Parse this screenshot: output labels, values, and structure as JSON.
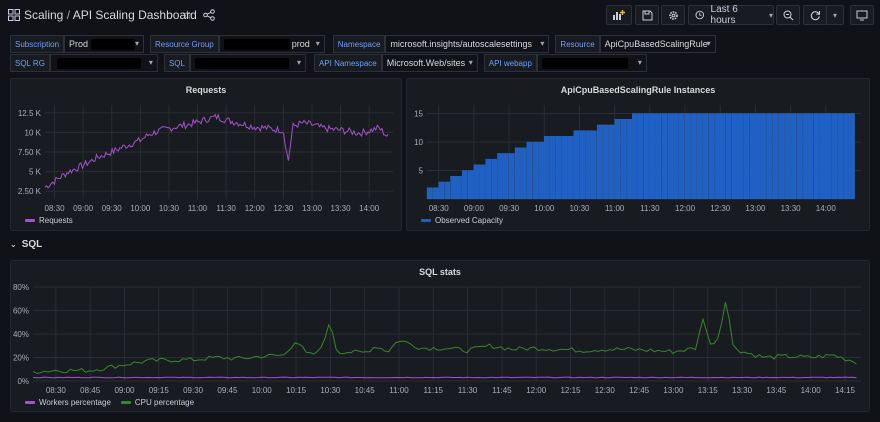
{
  "header": {
    "folder": "Scaling",
    "separator": "/",
    "title": "API Scaling Dashboard",
    "time_range": "Last 6 hours"
  },
  "variables": {
    "row1": [
      {
        "label": "Subscription",
        "value": "Prod"
      },
      {
        "label": "Resource Group",
        "value": "prod"
      },
      {
        "label": "Namespace",
        "value": "microsoft.insights/autoscalesettings"
      },
      {
        "label": "Resource",
        "value": "ApiCpuBasedScalingRule"
      }
    ],
    "row2": [
      {
        "label": "SQL RG",
        "value": ""
      },
      {
        "label": "SQL",
        "value": ""
      },
      {
        "label": "API Namespace",
        "value": "Microsoft.Web/sites"
      },
      {
        "label": "API webapp",
        "value": ""
      }
    ]
  },
  "panels": {
    "requests": {
      "title": "Requests",
      "legend": [
        {
          "name": "Requests",
          "color": "#a352cc"
        }
      ]
    },
    "instances": {
      "title": "ApiCpuBasedScalingRule Instances",
      "legend": [
        {
          "name": "Observed Capacity",
          "color": "#1f60c4"
        }
      ]
    },
    "sql_row": {
      "title": "SQL"
    },
    "sql_stats": {
      "title": "SQL stats",
      "legend": [
        {
          "name": "Workers percentage",
          "color": "#a352cc"
        },
        {
          "name": "CPU percentage",
          "color": "#37872d"
        }
      ]
    }
  },
  "chart_data": [
    {
      "type": "line",
      "title": "Requests",
      "x_ticks": [
        "08:30",
        "09:00",
        "09:30",
        "10:00",
        "10:30",
        "11:00",
        "11:30",
        "12:00",
        "12:30",
        "13:00",
        "13:30",
        "14:00"
      ],
      "y_ticks": [
        "2.50 K",
        "5 K",
        "7.50 K",
        "10 K",
        "12.5 K"
      ],
      "ylim": [
        1500,
        13500
      ],
      "series": [
        {
          "name": "Requests",
          "color": "#a352cc",
          "x": [
            "08:20",
            "08:30",
            "08:45",
            "09:00",
            "09:15",
            "09:30",
            "09:45",
            "10:00",
            "10:10",
            "10:20",
            "10:30",
            "10:40",
            "10:50",
            "11:00",
            "11:10",
            "11:20",
            "11:30",
            "11:40",
            "11:50",
            "12:00",
            "12:10",
            "12:20",
            "12:30",
            "12:35",
            "12:40",
            "12:50",
            "13:00",
            "13:10",
            "13:20",
            "13:30",
            "13:40",
            "13:50",
            "14:00",
            "14:10",
            "14:20"
          ],
          "values": [
            3000,
            3800,
            5000,
            5800,
            6800,
            7500,
            8300,
            9000,
            9800,
            10200,
            10500,
            10800,
            11000,
            11300,
            11700,
            12000,
            11600,
            11300,
            11000,
            10700,
            10600,
            10400,
            10300,
            6200,
            10800,
            11200,
            11000,
            10600,
            10400,
            10300,
            10100,
            9900,
            10200,
            10600,
            9400
          ]
        }
      ]
    },
    {
      "type": "bar",
      "title": "ApiCpuBasedScalingRule Instances",
      "x_ticks": [
        "08:30",
        "09:00",
        "09:30",
        "10:00",
        "10:30",
        "11:00",
        "11:30",
        "12:00",
        "12:30",
        "13:00",
        "13:30",
        "14:00"
      ],
      "y_ticks": [
        "5",
        "10",
        "15"
      ],
      "ylim": [
        0,
        16.5
      ],
      "series": [
        {
          "name": "Observed Capacity",
          "color": "#1f60c4",
          "x": [
            "08:20",
            "08:25",
            "08:30",
            "08:35",
            "08:40",
            "08:45",
            "08:50",
            "08:55",
            "09:00",
            "09:05",
            "09:10",
            "09:15",
            "09:20",
            "09:25",
            "09:30",
            "09:35",
            "09:40",
            "09:45",
            "09:50",
            "09:55",
            "10:00",
            "10:05",
            "10:10",
            "10:15",
            "10:20",
            "10:25",
            "10:30",
            "10:35",
            "10:40",
            "10:45",
            "10:50",
            "10:55",
            "11:00",
            "11:05",
            "11:10",
            "11:15",
            "11:20",
            "11:25",
            "11:30"
          ],
          "values": [
            2,
            2,
            3,
            3,
            4,
            4,
            5,
            5,
            6,
            6,
            7,
            7,
            8,
            8,
            8,
            9,
            9,
            10,
            10,
            10,
            11,
            11,
            11,
            11,
            11,
            12,
            12,
            12,
            12,
            13,
            13,
            13,
            14,
            14,
            14,
            15,
            15,
            15,
            15
          ]
        }
      ],
      "last_x": "14:20"
    },
    {
      "type": "line",
      "title": "SQL stats",
      "x_ticks": [
        "08:30",
        "08:45",
        "09:00",
        "09:15",
        "09:30",
        "09:45",
        "10:00",
        "10:15",
        "10:30",
        "10:45",
        "11:00",
        "11:15",
        "11:30",
        "11:45",
        "12:00",
        "12:15",
        "12:30",
        "12:45",
        "13:00",
        "13:15",
        "13:30",
        "13:45",
        "14:00",
        "14:15"
      ],
      "y_ticks": [
        "0%",
        "20%",
        "40%",
        "60%",
        "80%"
      ],
      "ylim": [
        0,
        80
      ],
      "series": [
        {
          "name": "Workers percentage",
          "color": "#a352cc",
          "x": [
            "08:20",
            "09:00",
            "10:00",
            "11:00",
            "12:00",
            "13:00",
            "14:00",
            "14:20"
          ],
          "values": [
            3,
            3,
            3,
            3,
            3,
            3,
            3,
            3
          ]
        },
        {
          "name": "CPU percentage",
          "color": "#37872d",
          "x": [
            "08:20",
            "08:30",
            "08:45",
            "09:00",
            "09:10",
            "09:20",
            "09:30",
            "09:40",
            "09:50",
            "10:00",
            "10:10",
            "10:15",
            "10:20",
            "10:25",
            "10:30",
            "10:33",
            "10:36",
            "10:45",
            "10:50",
            "10:55",
            "11:00",
            "11:10",
            "11:20",
            "11:30",
            "11:40",
            "11:50",
            "12:00",
            "12:10",
            "12:20",
            "12:30",
            "12:40",
            "12:50",
            "13:00",
            "13:10",
            "13:13",
            "13:16",
            "13:20",
            "13:23",
            "13:26",
            "13:30",
            "13:40",
            "13:50",
            "14:00",
            "14:10",
            "14:20"
          ],
          "values": [
            8,
            9,
            9,
            14,
            17,
            18,
            18,
            20,
            19,
            21,
            22,
            35,
            22,
            24,
            50,
            24,
            25,
            24,
            30,
            25,
            35,
            28,
            28,
            26,
            30,
            27,
            28,
            27,
            26,
            27,
            27,
            26,
            25,
            28,
            55,
            30,
            38,
            72,
            30,
            25,
            20,
            21,
            20,
            22,
            16
          ]
        }
      ]
    }
  ]
}
